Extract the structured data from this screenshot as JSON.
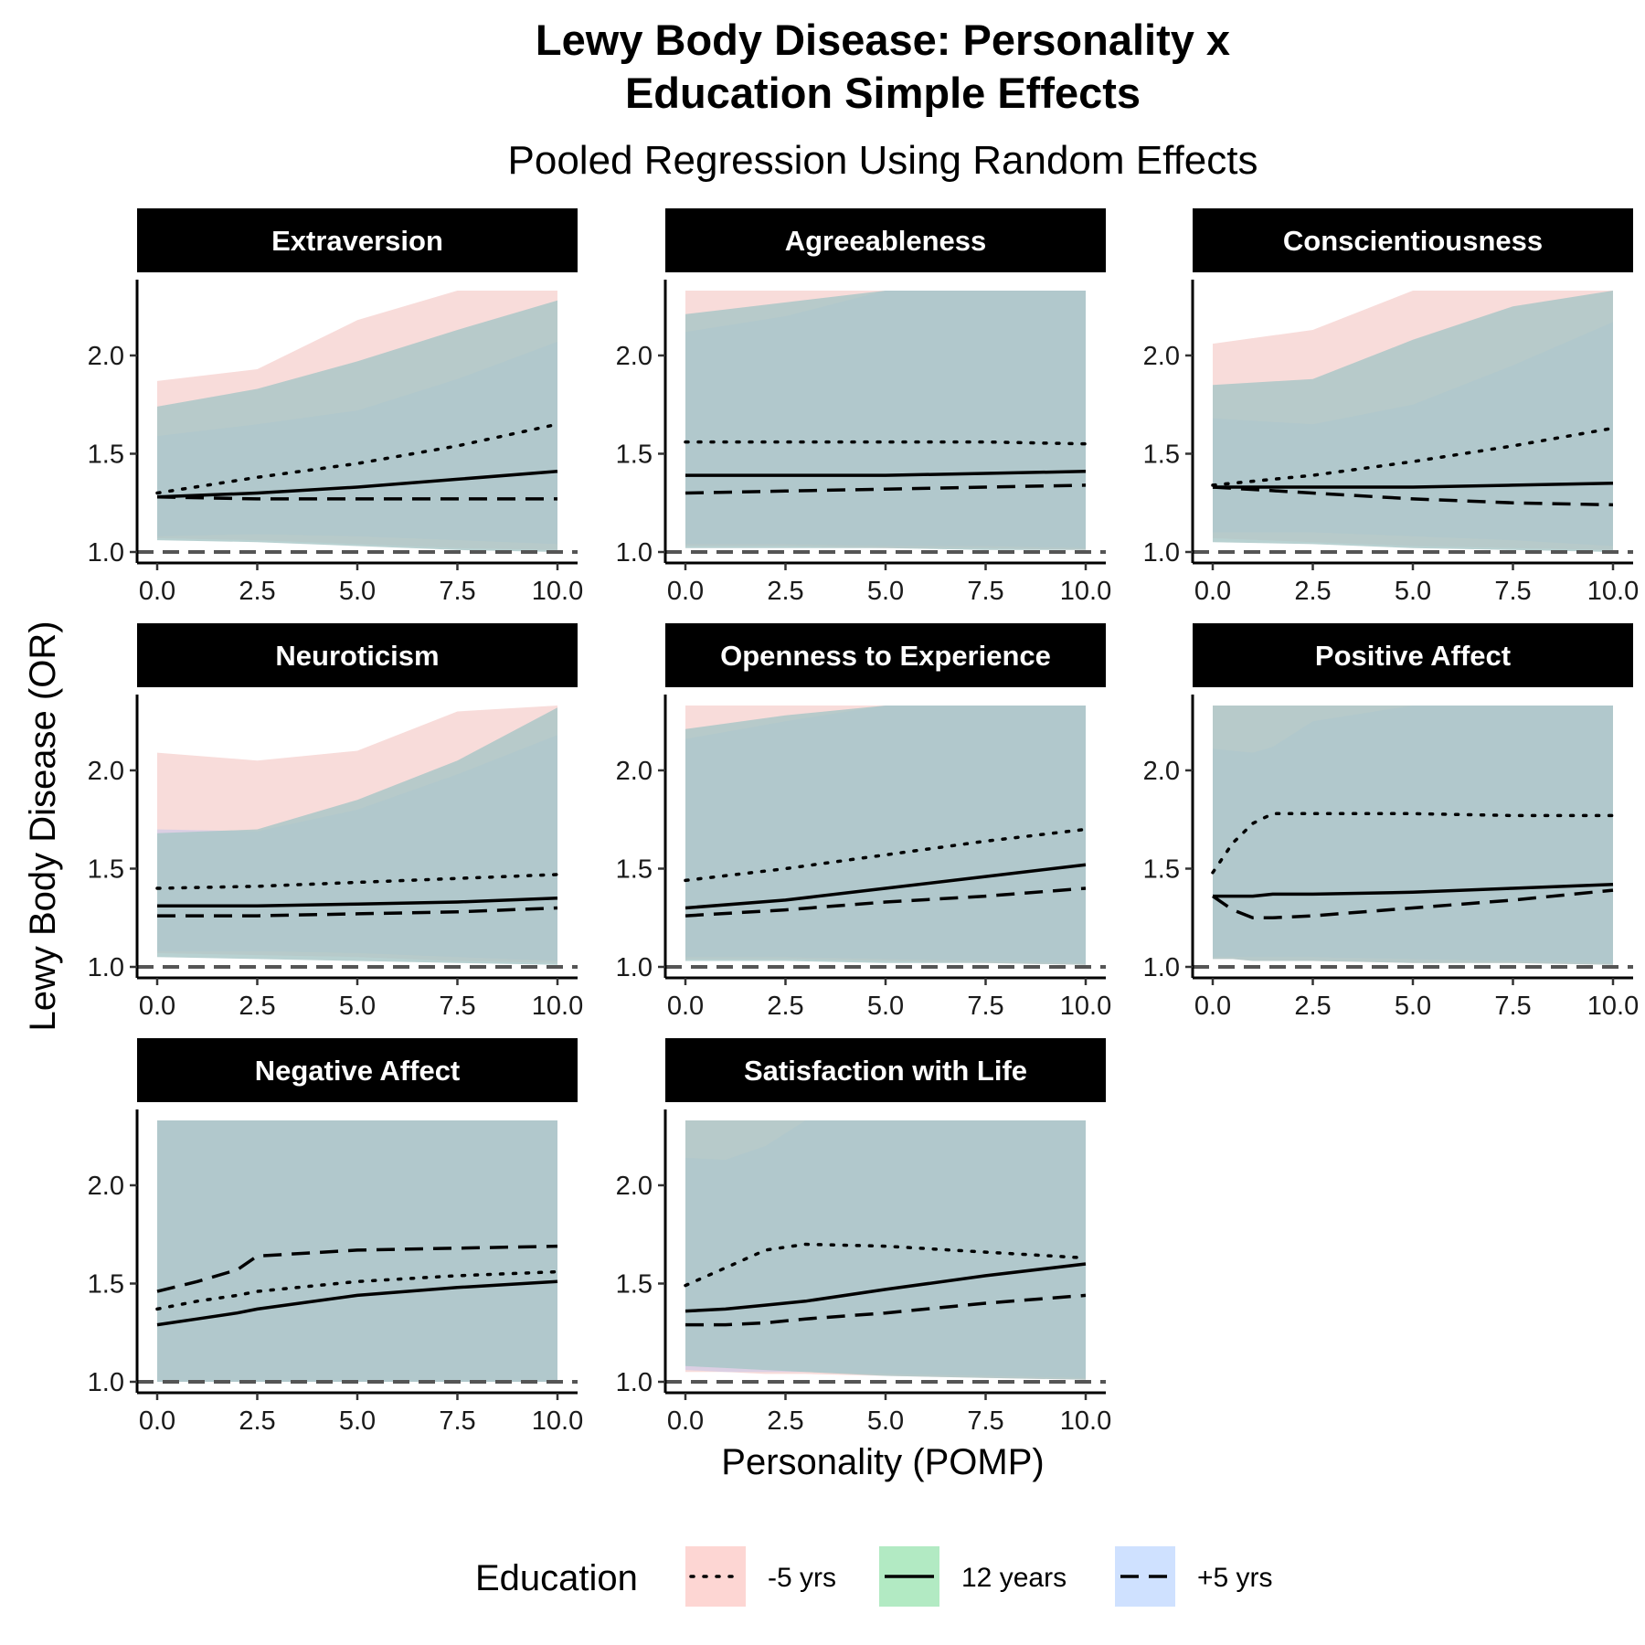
{
  "chart_data": {
    "type": "line",
    "title": "Lewy Body Disease: Personality x\nEducation Simple Effects",
    "subtitle": "Pooled Regression Using Random Effects",
    "xlabel": "Personality (POMP)",
    "ylabel": "Lewy Body Disease (OR)",
    "xlim": [
      0,
      10
    ],
    "ylim": [
      1.0,
      2.33
    ],
    "xticks": [
      "0.0",
      "2.5",
      "5.0",
      "7.5",
      "10.0"
    ],
    "yticks": [
      "1.0",
      "1.5",
      "2.0"
    ],
    "reference_line": 1.0,
    "legend": {
      "title": "Education",
      "position": "bottom",
      "entries": [
        {
          "label": "-5 yrs",
          "linetype": "dotted",
          "fill": "#F8766D"
        },
        {
          "label": "12 years",
          "linetype": "solid",
          "fill": "#00BA38"
        },
        {
          "label": "+5 yrs",
          "linetype": "dashed",
          "fill": "#619CFF"
        }
      ]
    },
    "band_colors": {
      "lower_edge": "#f8dcda",
      "purple": "#d6cde4",
      "overlap": "#a6c5c5",
      "low_blue": "#cfe0fb"
    },
    "panels": [
      {
        "name": "Extraversion",
        "x": [
          0,
          2.5,
          5,
          7.5,
          10
        ],
        "series": [
          {
            "name": "-5 yrs",
            "values": [
              1.3,
              1.38,
              1.45,
              1.54,
              1.65
            ],
            "upper": [
              1.87,
              1.93,
              2.18,
              2.35,
              2.35
            ],
            "lower": [
              1.07,
              1.06,
              1.04,
              1.02,
              1.01
            ]
          },
          {
            "name": "12 years",
            "values": [
              1.28,
              1.3,
              1.33,
              1.37,
              1.41
            ],
            "upper": [
              1.59,
              1.65,
              1.72,
              1.88,
              2.07
            ],
            "lower": [
              1.08,
              1.09,
              1.08,
              1.06,
              1.04
            ]
          },
          {
            "name": "+5 yrs",
            "values": [
              1.28,
              1.27,
              1.27,
              1.27,
              1.27
            ],
            "upper": [
              1.74,
              1.83,
              1.97,
              2.13,
              2.28
            ],
            "lower": [
              1.06,
              1.05,
              1.03,
              1.01,
              1.0
            ]
          }
        ]
      },
      {
        "name": "Agreeableness",
        "x": [
          0,
          2.5,
          5,
          7.5,
          10
        ],
        "series": [
          {
            "name": "-5 yrs",
            "values": [
              1.56,
              1.56,
              1.56,
              1.56,
              1.55
            ],
            "upper": [
              2.35,
              2.35,
              2.35,
              2.35,
              2.35
            ],
            "lower": [
              1.03,
              1.03,
              1.02,
              1.02,
              1.01
            ]
          },
          {
            "name": "12 years",
            "values": [
              1.39,
              1.39,
              1.39,
              1.4,
              1.41
            ],
            "upper": [
              2.12,
              2.2,
              2.35,
              2.35,
              2.35
            ],
            "lower": [
              1.04,
              1.04,
              1.03,
              1.03,
              1.02
            ]
          },
          {
            "name": "+5 yrs",
            "values": [
              1.3,
              1.31,
              1.32,
              1.33,
              1.34
            ],
            "upper": [
              2.21,
              2.27,
              2.35,
              2.35,
              2.35
            ],
            "lower": [
              1.02,
              1.02,
              1.02,
              1.01,
              1.01
            ]
          }
        ]
      },
      {
        "name": "Conscientiousness",
        "x": [
          0,
          2.5,
          5,
          7.5,
          10
        ],
        "series": [
          {
            "name": "-5 yrs",
            "values": [
              1.34,
              1.39,
              1.46,
              1.54,
              1.63
            ],
            "upper": [
              2.06,
              2.13,
              2.35,
              2.35,
              2.35
            ],
            "lower": [
              1.07,
              1.05,
              1.03,
              1.02,
              1.01
            ]
          },
          {
            "name": "12 years",
            "values": [
              1.33,
              1.33,
              1.33,
              1.34,
              1.35
            ],
            "upper": [
              1.68,
              1.65,
              1.75,
              1.95,
              2.17
            ],
            "lower": [
              1.1,
              1.1,
              1.08,
              1.06,
              1.03
            ]
          },
          {
            "name": "+5 yrs",
            "values": [
              1.33,
              1.3,
              1.27,
              1.25,
              1.24
            ],
            "upper": [
              1.85,
              1.88,
              2.08,
              2.25,
              2.35
            ],
            "lower": [
              1.05,
              1.04,
              1.02,
              1.01,
              1.0
            ]
          }
        ]
      },
      {
        "name": "Neuroticism",
        "x": [
          0,
          2.5,
          5,
          7.5,
          10
        ],
        "series": [
          {
            "name": "-5 yrs",
            "values": [
              1.4,
              1.41,
              1.43,
              1.45,
              1.47
            ],
            "upper": [
              2.09,
              2.05,
              2.1,
              2.3,
              2.35
            ],
            "lower": [
              1.07,
              1.06,
              1.05,
              1.03,
              1.02
            ]
          },
          {
            "name": "12 years",
            "values": [
              1.31,
              1.31,
              1.32,
              1.33,
              1.35
            ],
            "upper": [
              1.7,
              1.69,
              1.8,
              1.98,
              2.18
            ],
            "lower": [
              1.08,
              1.08,
              1.07,
              1.05,
              1.03
            ]
          },
          {
            "name": "+5 yrs",
            "values": [
              1.26,
              1.26,
              1.27,
              1.28,
              1.3
            ],
            "upper": [
              1.68,
              1.7,
              1.85,
              2.05,
              2.32
            ],
            "lower": [
              1.05,
              1.04,
              1.03,
              1.02,
              1.01
            ]
          }
        ]
      },
      {
        "name": "Openness to Experience",
        "x": [
          0,
          2.5,
          5,
          7.5,
          10
        ],
        "series": [
          {
            "name": "-5 yrs",
            "values": [
              1.44,
              1.5,
              1.57,
              1.64,
              1.7
            ],
            "upper": [
              2.35,
              2.35,
              2.35,
              2.35,
              2.35
            ],
            "lower": [
              1.04,
              1.04,
              1.03,
              1.02,
              1.01
            ]
          },
          {
            "name": "12 years",
            "values": [
              1.3,
              1.34,
              1.4,
              1.46,
              1.52
            ],
            "upper": [
              2.16,
              2.25,
              2.35,
              2.35,
              2.35
            ],
            "lower": [
              1.05,
              1.05,
              1.04,
              1.03,
              1.02
            ]
          },
          {
            "name": "+5 yrs",
            "values": [
              1.26,
              1.29,
              1.33,
              1.36,
              1.4
            ],
            "upper": [
              2.21,
              2.28,
              2.35,
              2.35,
              2.35
            ],
            "lower": [
              1.03,
              1.03,
              1.02,
              1.02,
              1.01
            ]
          }
        ]
      },
      {
        "name": "Positive Affect",
        "x": [
          0,
          0.5,
          1,
          1.5,
          2.5,
          5,
          7.5,
          10
        ],
        "series": [
          {
            "name": "-5 yrs",
            "values": [
              1.48,
              1.63,
              1.73,
              1.78,
              1.78,
              1.78,
              1.77,
              1.77
            ],
            "upper": [
              2.35,
              2.35,
              2.35,
              2.35,
              2.35,
              2.35,
              2.35,
              2.35
            ],
            "lower": [
              1.04,
              1.04,
              1.03,
              1.03,
              1.03,
              1.02,
              1.02,
              1.01
            ]
          },
          {
            "name": "12 years",
            "values": [
              1.36,
              1.36,
              1.36,
              1.37,
              1.37,
              1.38,
              1.4,
              1.42
            ],
            "upper": [
              2.11,
              2.1,
              2.09,
              2.12,
              2.25,
              2.35,
              2.35,
              2.35
            ],
            "lower": [
              1.05,
              1.05,
              1.05,
              1.05,
              1.05,
              1.04,
              1.03,
              1.02
            ]
          },
          {
            "name": "+5 yrs",
            "values": [
              1.36,
              1.29,
              1.25,
              1.25,
              1.26,
              1.3,
              1.34,
              1.39
            ],
            "upper": [
              2.35,
              2.35,
              2.35,
              2.35,
              2.35,
              2.35,
              2.35,
              2.35
            ],
            "lower": [
              1.04,
              1.04,
              1.03,
              1.03,
              1.03,
              1.02,
              1.02,
              1.01
            ]
          }
        ]
      },
      {
        "name": "Negative Affect",
        "x": [
          0,
          1,
          2,
          2.5,
          5,
          7.5,
          10
        ],
        "series": [
          {
            "name": "-5 yrs",
            "values": [
              1.37,
              1.41,
              1.44,
              1.46,
              1.51,
              1.54,
              1.56
            ],
            "upper": [
              2.35,
              2.35,
              2.35,
              2.35,
              2.35,
              2.35,
              2.35
            ],
            "lower": [
              1.0,
              1.0,
              1.0,
              1.0,
              1.0,
              1.0,
              1.0
            ]
          },
          {
            "name": "12 years",
            "values": [
              1.29,
              1.32,
              1.35,
              1.37,
              1.44,
              1.48,
              1.51
            ],
            "upper": [
              2.35,
              2.35,
              2.35,
              2.35,
              2.35,
              2.35,
              2.35
            ],
            "lower": [
              1.0,
              1.0,
              1.0,
              1.0,
              1.0,
              1.0,
              1.0
            ]
          },
          {
            "name": "+5 yrs",
            "values": [
              1.46,
              1.51,
              1.57,
              1.64,
              1.67,
              1.68,
              1.69
            ],
            "upper": [
              2.35,
              2.35,
              2.35,
              2.35,
              2.35,
              2.35,
              2.35
            ],
            "lower": [
              1.0,
              1.0,
              1.0,
              1.0,
              1.0,
              1.0,
              1.0
            ]
          }
        ]
      },
      {
        "name": "Satisfaction with Life",
        "x": [
          0,
          1,
          2,
          3,
          5,
          7.5,
          10
        ],
        "series": [
          {
            "name": "-5 yrs",
            "values": [
              1.49,
              1.58,
              1.67,
              1.7,
              1.69,
              1.66,
              1.63
            ],
            "upper": [
              2.35,
              2.35,
              2.35,
              2.35,
              2.35,
              2.35,
              2.35
            ],
            "lower": [
              1.05,
              1.05,
              1.04,
              1.04,
              1.03,
              1.02,
              1.01
            ]
          },
          {
            "name": "12 years",
            "values": [
              1.36,
              1.37,
              1.39,
              1.41,
              1.47,
              1.54,
              1.6
            ],
            "upper": [
              2.14,
              2.13,
              2.2,
              2.35,
              2.35,
              2.35,
              2.35
            ],
            "lower": [
              1.06,
              1.05,
              1.05,
              1.05,
              1.04,
              1.03,
              1.02
            ]
          },
          {
            "name": "+5 yrs",
            "values": [
              1.29,
              1.29,
              1.3,
              1.32,
              1.35,
              1.4,
              1.44
            ],
            "upper": [
              2.35,
              2.35,
              2.35,
              2.35,
              2.35,
              2.35,
              2.35
            ],
            "lower": [
              1.08,
              1.07,
              1.06,
              1.05,
              1.03,
              1.02,
              1.01
            ]
          }
        ]
      }
    ]
  }
}
